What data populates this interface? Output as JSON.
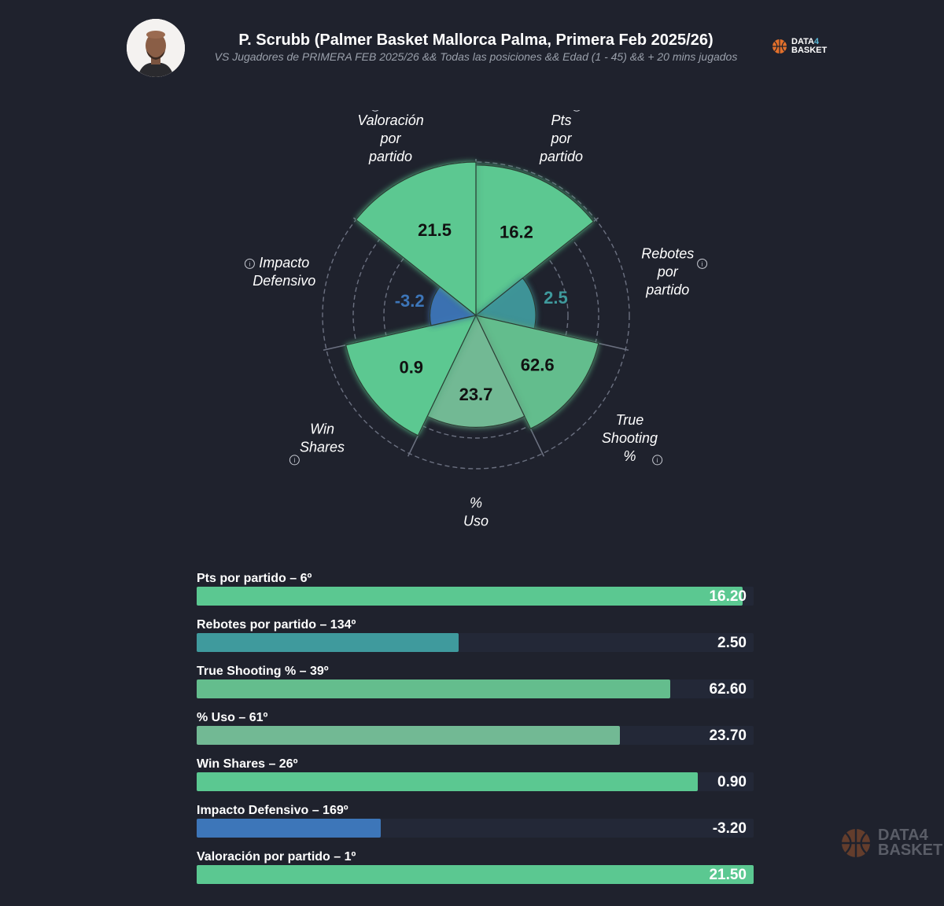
{
  "header": {
    "title": "P. Scrubb (Palmer Basket Mallorca Palma, Primera Feb 2025/26)",
    "subtitle": "VS Jugadores de PRIMERA FEB 2025/26 && Todas las posiciones && Edad (1 - 45) && + 20 mins jugados",
    "logo": {
      "line1": "DATA",
      "line1_accent": "4",
      "line2": "BASKET"
    }
  },
  "watermark": {
    "line1": "DATA",
    "line1_accent": "4",
    "line2": "BASKET"
  },
  "colors": {
    "background": "#1f222d",
    "green": "#5bc891",
    "teal": "#3f9a9d",
    "blue": "#3d76b9",
    "light_green": "#72b994",
    "mid_green": "#64bd8d",
    "grid": "#6b7080"
  },
  "chart_data": {
    "type": "polar-area",
    "metrics": [
      {
        "key": "pts",
        "label": [
          "Pts",
          "por",
          "partido"
        ],
        "value": 16.2,
        "display": "16.2",
        "percentile": 98,
        "color": "#5bc891",
        "text_color": "#111111"
      },
      {
        "key": "reb",
        "label": [
          "Rebotes",
          "por",
          "partido"
        ],
        "value": 2.5,
        "display": "2.5",
        "percentile": 39,
        "color": "#3f9a9d",
        "text_color": "#3f9a9d"
      },
      {
        "key": "ts",
        "label": [
          "True",
          "Shooting",
          "%"
        ],
        "value": 62.6,
        "display": "62.6",
        "percentile": 82,
        "color": "#64bd8d",
        "text_color": "#111111"
      },
      {
        "key": "uso",
        "label": [
          "%",
          "Uso"
        ],
        "value": 23.7,
        "display": "23.7",
        "percentile": 73,
        "color": "#72b994",
        "text_color": "#111111"
      },
      {
        "key": "ws",
        "label": [
          "Win",
          "Shares"
        ],
        "value": 0.9,
        "display": "0.9",
        "percentile": 87,
        "color": "#5bc891",
        "text_color": "#111111"
      },
      {
        "key": "def",
        "label": [
          "Impacto",
          "Defensivo"
        ],
        "value": -3.2,
        "display": "-3.2",
        "percentile": 30,
        "color": "#3d76b9",
        "text_color": "#3d76b9"
      },
      {
        "key": "val",
        "label": [
          "Valoración",
          "por",
          "partido"
        ],
        "value": 21.5,
        "display": "21.5",
        "percentile": 100,
        "color": "#5bc891",
        "text_color": "#111111"
      }
    ]
  },
  "bars": [
    {
      "label": "Pts por partido – 6º",
      "value": "16.20",
      "fill_pct": 98,
      "color": "#5bc891",
      "name": "bar-pts"
    },
    {
      "label": "Rebotes por partido – 134º",
      "value": "2.50",
      "fill_pct": 47,
      "color": "#3f9a9d",
      "name": "bar-rebotes"
    },
    {
      "label": "True Shooting % – 39º",
      "value": "62.60",
      "fill_pct": 85,
      "color": "#64bd8d",
      "name": "bar-true-shooting"
    },
    {
      "label": "% Uso – 61º",
      "value": "23.70",
      "fill_pct": 76,
      "color": "#72b994",
      "name": "bar-uso"
    },
    {
      "label": "Win Shares – 26º",
      "value": "0.90",
      "fill_pct": 90,
      "color": "#5bc891",
      "name": "bar-win-shares"
    },
    {
      "label": "Impacto Defensivo – 169º",
      "value": "-3.20",
      "fill_pct": 33,
      "color": "#3d76b9",
      "name": "bar-impacto-defensivo"
    },
    {
      "label": "Valoración por partido – 1º",
      "value": "21.50",
      "fill_pct": 100,
      "color": "#5bc891",
      "name": "bar-valoracion"
    }
  ]
}
